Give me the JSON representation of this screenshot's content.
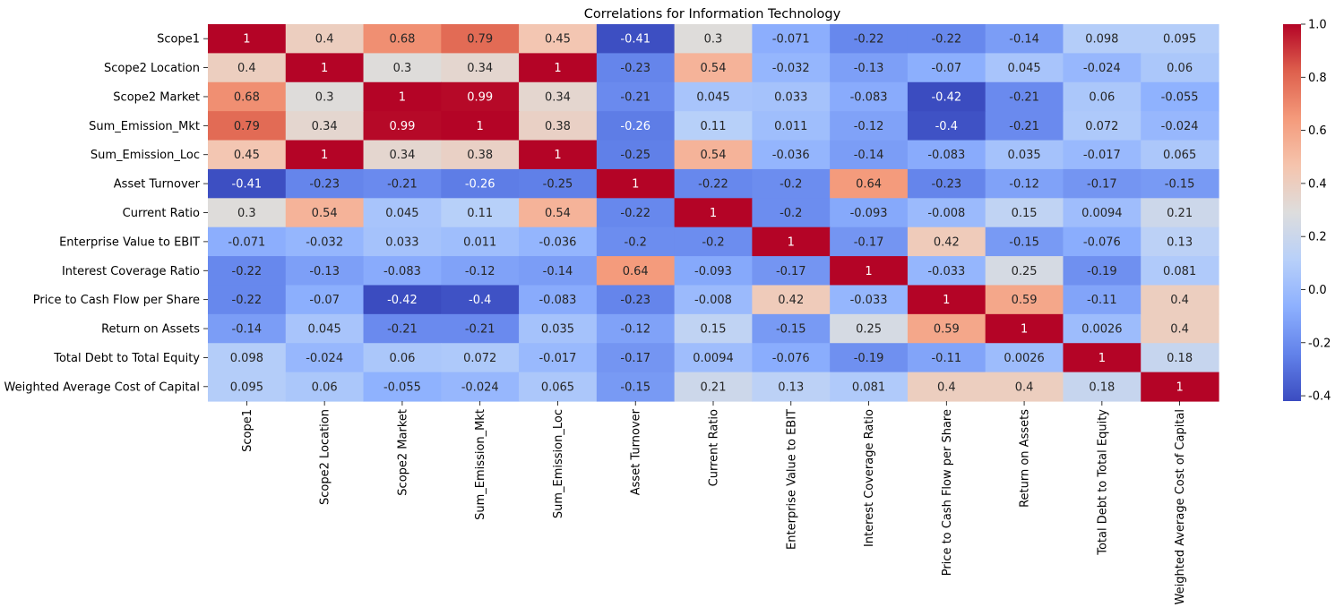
{
  "chart_data": {
    "type": "heatmap",
    "title": "Correlations for Information Technology",
    "row_labels": [
      "Scope1",
      "Scope2 Location",
      "Scope2 Market",
      "Sum_Emission_Mkt",
      "Sum_Emission_Loc",
      "Asset Turnover",
      "Current Ratio",
      "Enterprise Value to EBIT",
      "Interest Coverage Ratio",
      "Price to Cash Flow per Share",
      "Return on Assets",
      "Total Debt to Total Equity",
      "Weighted Average Cost of Capital"
    ],
    "col_labels": [
      "Scope1",
      "Scope2 Location",
      "Scope2 Market",
      "Sum_Emission_Mkt",
      "Sum_Emission_Loc",
      "Asset Turnover",
      "Current Ratio",
      "Enterprise Value to EBIT",
      "Interest Coverage Ratio",
      "Price to Cash Flow per Share",
      "Return on Assets",
      "Total Debt to Total Equity",
      "Weighted Average Cost of Capital"
    ],
    "values": [
      [
        "1",
        "0.4",
        "0.68",
        "0.79",
        "0.45",
        "-0.41",
        "0.3",
        "-0.071",
        "-0.22",
        "-0.22",
        "-0.14",
        "0.098",
        "0.095"
      ],
      [
        "0.4",
        "1",
        "0.3",
        "0.34",
        "1",
        "-0.23",
        "0.54",
        "-0.032",
        "-0.13",
        "-0.07",
        "0.045",
        "-0.024",
        "0.06"
      ],
      [
        "0.68",
        "0.3",
        "1",
        "0.99",
        "0.34",
        "-0.21",
        "0.045",
        "0.033",
        "-0.083",
        "-0.42",
        "-0.21",
        "0.06",
        "-0.055"
      ],
      [
        "0.79",
        "0.34",
        "0.99",
        "1",
        "0.38",
        "-0.26",
        "0.11",
        "0.011",
        "-0.12",
        "-0.4",
        "-0.21",
        "0.072",
        "-0.024"
      ],
      [
        "0.45",
        "1",
        "0.34",
        "0.38",
        "1",
        "-0.25",
        "0.54",
        "-0.036",
        "-0.14",
        "-0.083",
        "0.035",
        "-0.017",
        "0.065"
      ],
      [
        "-0.41",
        "-0.23",
        "-0.21",
        "-0.26",
        "-0.25",
        "1",
        "-0.22",
        "-0.2",
        "0.64",
        "-0.23",
        "-0.12",
        "-0.17",
        "-0.15"
      ],
      [
        "0.3",
        "0.54",
        "0.045",
        "0.11",
        "0.54",
        "-0.22",
        "1",
        "-0.2",
        "-0.093",
        "-0.008",
        "0.15",
        "0.0094",
        "0.21"
      ],
      [
        "-0.071",
        "-0.032",
        "0.033",
        "0.011",
        "-0.036",
        "-0.2",
        "-0.2",
        "1",
        "-0.17",
        "0.42",
        "-0.15",
        "-0.076",
        "0.13"
      ],
      [
        "-0.22",
        "-0.13",
        "-0.083",
        "-0.12",
        "-0.14",
        "0.64",
        "-0.093",
        "-0.17",
        "1",
        "-0.033",
        "0.25",
        "-0.19",
        "0.081"
      ],
      [
        "-0.22",
        "-0.07",
        "-0.42",
        "-0.4",
        "-0.083",
        "-0.23",
        "-0.008",
        "0.42",
        "-0.033",
        "1",
        "0.59",
        "-0.11",
        "0.4"
      ],
      [
        "-0.14",
        "0.045",
        "-0.21",
        "-0.21",
        "0.035",
        "-0.12",
        "0.15",
        "-0.15",
        "0.25",
        "0.59",
        "1",
        "0.0026",
        "0.4"
      ],
      [
        "0.098",
        "-0.024",
        "0.06",
        "0.072",
        "-0.017",
        "-0.17",
        "0.0094",
        "-0.076",
        "-0.19",
        "-0.11",
        "0.0026",
        "1",
        "0.18"
      ],
      [
        "0.095",
        "0.06",
        "-0.055",
        "-0.024",
        "0.065",
        "-0.15",
        "0.21",
        "0.13",
        "0.081",
        "0.4",
        "0.4",
        "0.18",
        "1"
      ]
    ],
    "colorbar": {
      "colormap": "coolwarm",
      "vmin": -0.42,
      "vmax": 1.0,
      "ticks": [
        "-0.4",
        "-0.2",
        "0.0",
        "0.2",
        "0.4",
        "0.6",
        "0.8",
        "1.0"
      ]
    }
  }
}
